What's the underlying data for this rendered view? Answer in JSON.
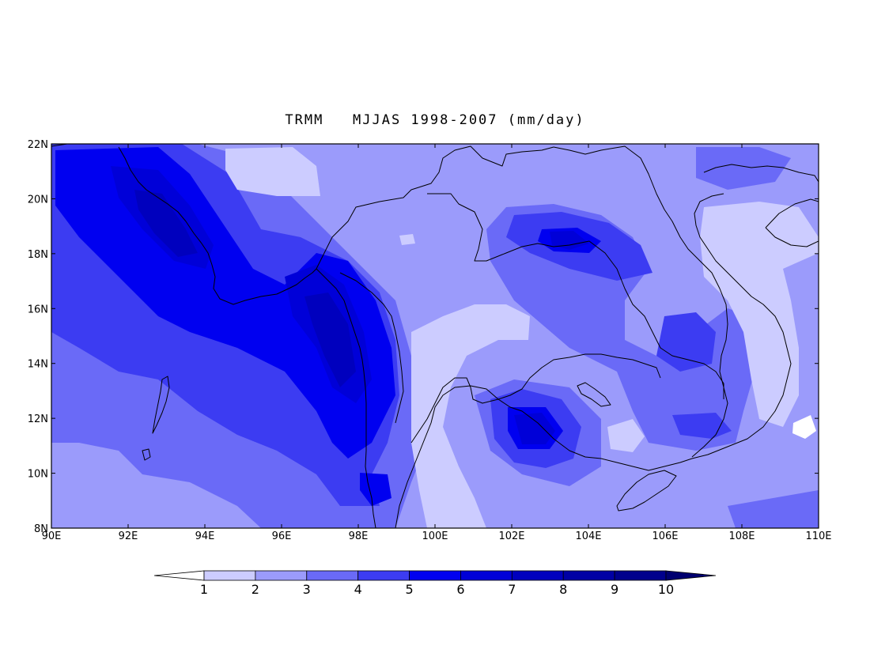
{
  "title": "TRMM   MJJAS 1998-2007 (mm/day)",
  "map": {
    "lon_range": [
      90,
      110
    ],
    "lat_range": [
      8,
      22
    ],
    "lon_ticks": [
      "90E",
      "92E",
      "94E",
      "96E",
      "98E",
      "100E",
      "102E",
      "104E",
      "106E",
      "108E",
      "110E"
    ],
    "lat_ticks": [
      "8N",
      "10N",
      "12N",
      "14N",
      "16N",
      "18N",
      "20N",
      "22N"
    ]
  },
  "colorbar": {
    "levels": [
      "1",
      "2",
      "3",
      "4",
      "5",
      "6",
      "7",
      "8",
      "9",
      "10"
    ],
    "colors": [
      "#ffffff",
      "#ccccff",
      "#9b9bfb",
      "#6a6af7",
      "#3c3cf2",
      "#0000f0",
      "#0000d8",
      "#0000be",
      "#0000a4",
      "#00008c",
      "#000070"
    ]
  }
}
